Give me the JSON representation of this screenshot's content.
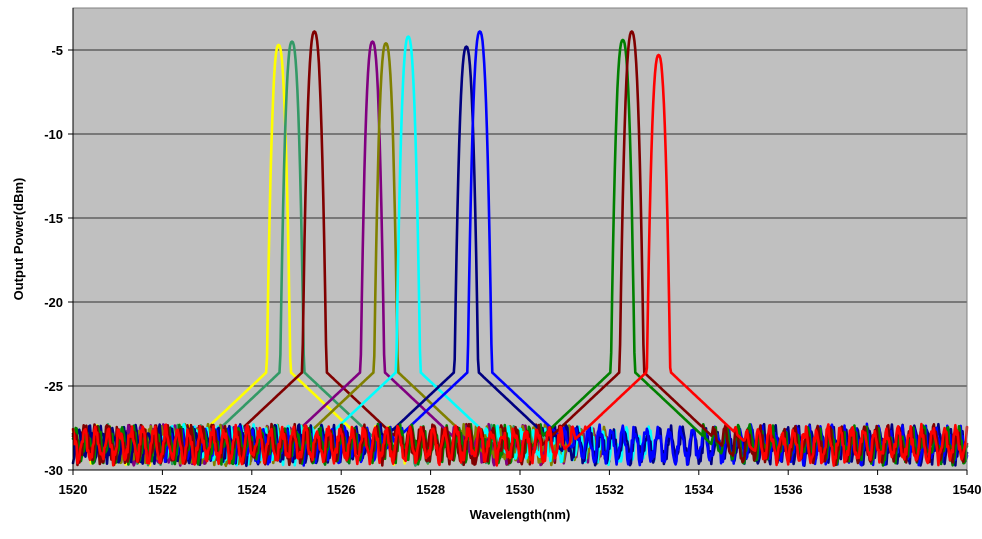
{
  "chart_data": {
    "type": "line",
    "title": "",
    "xlabel": "Wavelength(nm)",
    "ylabel": "Output Power(dBm)",
    "xlim": [
      1520,
      1540
    ],
    "ylim": [
      -30,
      -2.5
    ],
    "xticks": [
      1520,
      1522,
      1524,
      1526,
      1528,
      1530,
      1532,
      1534,
      1536,
      1538,
      1540
    ],
    "yticks": [
      -5,
      -10,
      -15,
      -20,
      -25,
      -30
    ],
    "grid": "horizontal",
    "legend": "none",
    "plot_background": "#c0c0c0",
    "noise_floor_dBm": -28.5,
    "series": [
      {
        "color": "#ffff00",
        "peak_wavelength": 1524.6,
        "peak_power": -4.7,
        "span": [
          1520.0,
          1528.0
        ]
      },
      {
        "color": "#339966",
        "peak_wavelength": 1524.9,
        "peak_power": -4.5,
        "span": [
          1520.0,
          1530.0
        ]
      },
      {
        "color": "#800000",
        "peak_wavelength": 1525.4,
        "peak_power": -3.9,
        "span": [
          1520.0,
          1531.0
        ]
      },
      {
        "color": "#800080",
        "peak_wavelength": 1526.7,
        "peak_power": -4.5,
        "span": [
          1521.0,
          1532.0
        ]
      },
      {
        "color": "#808000",
        "peak_wavelength": 1527.0,
        "peak_power": -4.6,
        "span": [
          1521.0,
          1532.0
        ]
      },
      {
        "color": "#00ffff",
        "peak_wavelength": 1527.5,
        "peak_power": -4.2,
        "span": [
          1522.0,
          1533.0
        ]
      },
      {
        "color": "#000080",
        "peak_wavelength": 1528.8,
        "peak_power": -4.8,
        "span": [
          1520.0,
          1540.0
        ]
      },
      {
        "color": "#0000ff",
        "peak_wavelength": 1529.1,
        "peak_power": -3.9,
        "span": [
          1522.0,
          1540.0
        ]
      },
      {
        "color": "#008000",
        "peak_wavelength": 1532.3,
        "peak_power": -4.4,
        "span": [
          1520.0,
          1540.0
        ]
      },
      {
        "color": "#800000",
        "peak_wavelength": 1532.5,
        "peak_power": -3.9,
        "span": [
          1520.0,
          1540.0
        ]
      },
      {
        "color": "#ff0000",
        "peak_wavelength": 1533.1,
        "peak_power": -5.3,
        "span": [
          1520.0,
          1540.0
        ]
      }
    ]
  }
}
